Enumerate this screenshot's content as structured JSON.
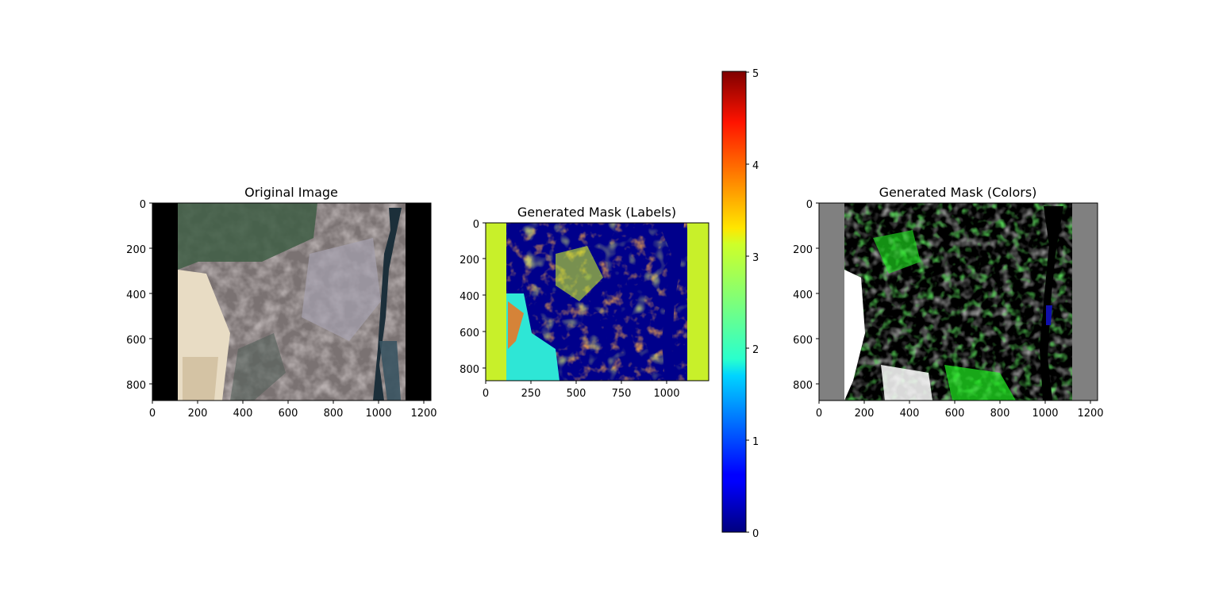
{
  "panels": {
    "original": {
      "title": "Original Image",
      "x_ticks": [
        "0",
        "200",
        "400",
        "600",
        "800",
        "1000",
        "1200"
      ],
      "y_ticks": [
        "0",
        "200",
        "400",
        "600",
        "800"
      ]
    },
    "labels": {
      "title": "Generated Mask (Labels)",
      "x_ticks": [
        "0",
        "250",
        "500",
        "750",
        "1000"
      ],
      "y_ticks": [
        "0",
        "200",
        "400",
        "600",
        "800"
      ]
    },
    "colors": {
      "title": "Generated Mask (Colors)",
      "x_ticks": [
        "0",
        "200",
        "400",
        "600",
        "800",
        "1000",
        "1200"
      ],
      "y_ticks": [
        "0",
        "200",
        "400",
        "600",
        "800"
      ]
    }
  },
  "colorbar": {
    "ticks": [
      "0",
      "1",
      "2",
      "3",
      "4",
      "5"
    ],
    "range": [
      0,
      5
    ],
    "colormap": "jet"
  },
  "colors": {
    "border_black": "#000000",
    "border_gray": "#808080",
    "mask_yellowgreen": "#c8f02a",
    "mask_navy": "#00008b",
    "mask_orange": "#ff6a10",
    "mask_cyan": "#2ee6d6",
    "vegetation_green": "#22ee22",
    "river_dark": "#1c2f3a"
  }
}
